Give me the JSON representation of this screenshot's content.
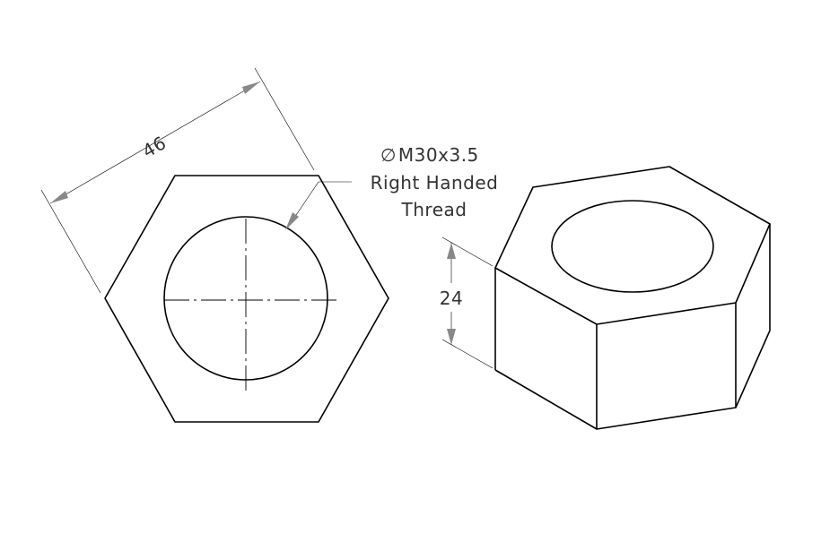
{
  "front_view": {
    "width_across_flats": "46"
  },
  "callout": {
    "diameter_symbol": "∅",
    "thread_spec": "M30x3.5",
    "line2": "Right Handed",
    "line3": "Thread"
  },
  "iso_view": {
    "height": "24"
  }
}
